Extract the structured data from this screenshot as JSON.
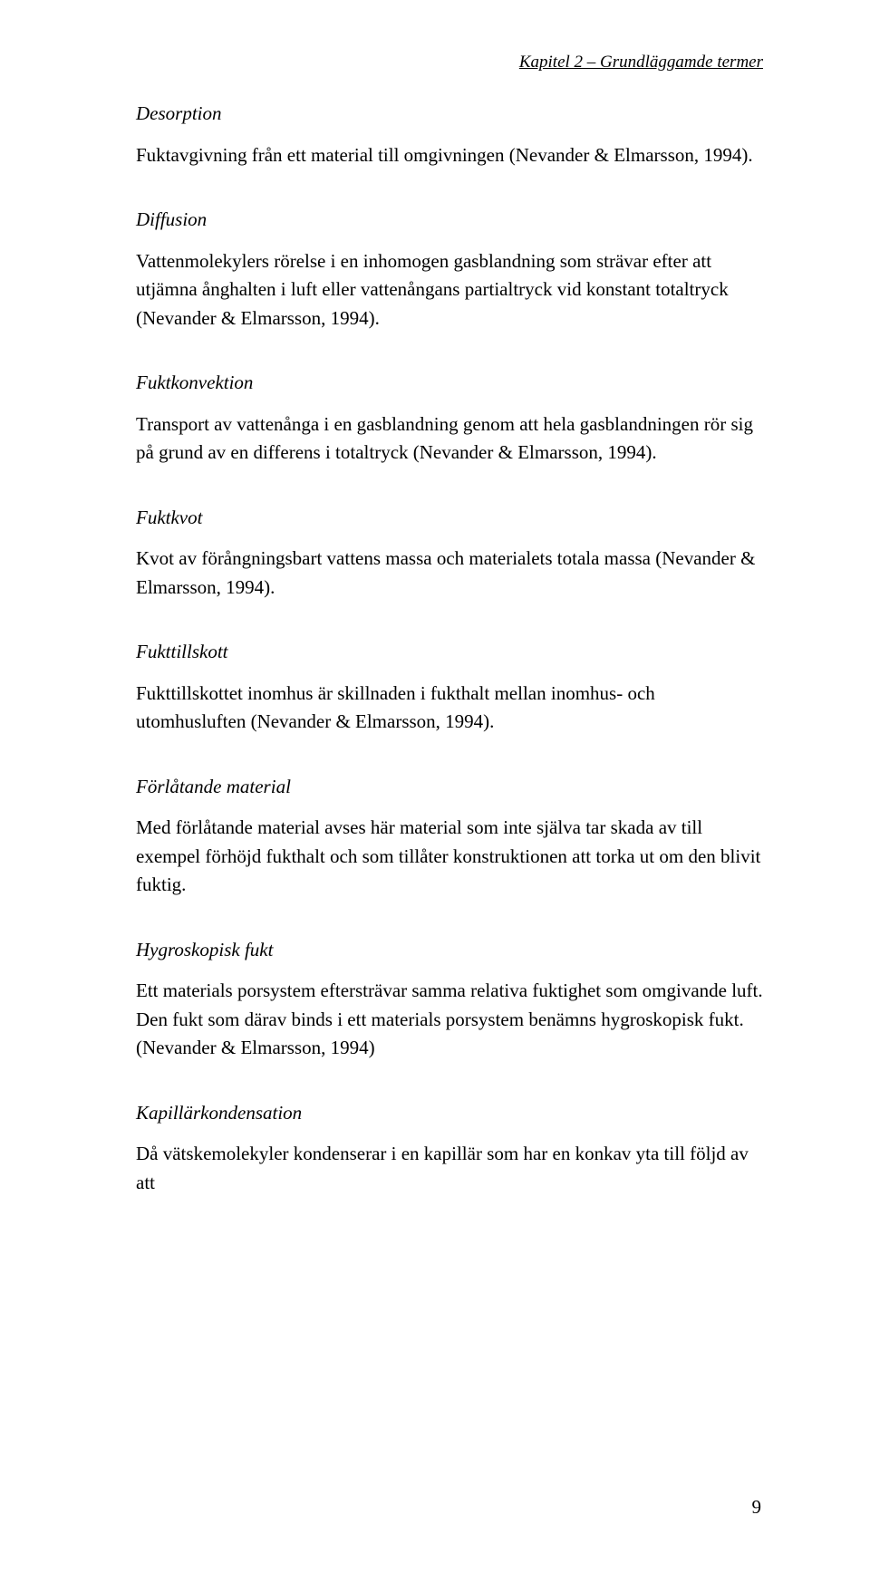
{
  "runningHead": "Kapitel 2 – Grundläggamde termer",
  "pageNumber": "9",
  "entries": [
    {
      "term": "Desorption",
      "body": "Fuktavgivning från ett material till omgivningen (Nevander & Elmarsson, 1994)."
    },
    {
      "term": "Diffusion",
      "body": "Vattenmolekylers rörelse i en inhomogen gasblandning som strävar efter att utjämna ånghalten i luft eller vattenångans partialtryck vid konstant totaltryck (Nevander & Elmarsson, 1994)."
    },
    {
      "term": "Fuktkonvektion",
      "body": "Transport av vattenånga i en gasblandning genom att hela gasblandningen rör sig på grund av en differens i totaltryck (Nevander & Elmarsson, 1994)."
    },
    {
      "term": "Fuktkvot",
      "body": "Kvot av förångningsbart vattens massa och materialets totala massa (Nevander & Elmarsson, 1994)."
    },
    {
      "term": "Fukttillskott",
      "body": "Fukttillskottet inomhus är skillnaden i fukthalt mellan inomhus- och utomhusluften (Nevander & Elmarsson, 1994)."
    },
    {
      "term": "Förlåtande material",
      "body": "Med förlåtande material avses här material som inte själva tar skada av till exempel förhöjd fukthalt och som tillåter konstruktionen att torka ut om den blivit fuktig."
    },
    {
      "term": "Hygroskopisk fukt",
      "body": "Ett materials porsystem eftersträvar samma relativa fuktighet som omgivande luft. Den fukt som därav binds i ett materials porsystem benämns hygroskopisk fukt. (Nevander & Elmarsson, 1994)"
    },
    {
      "term": "Kapillärkondensation",
      "body": "Då vätskemolekyler kondenserar i en kapillär som har en konkav yta till följd av att"
    }
  ]
}
